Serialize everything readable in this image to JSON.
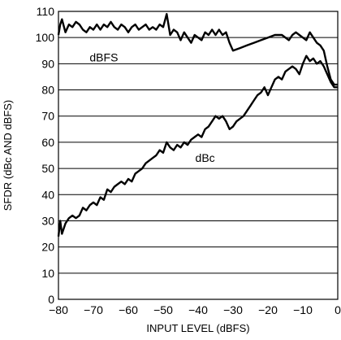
{
  "chart_data": {
    "type": "line",
    "xlabel": "INPUT LEVEL (dBFS)",
    "ylabel": "SFDR (dBc AND dBFS)",
    "xlim": [
      -80,
      0
    ],
    "ylim": [
      0,
      110
    ],
    "xticks": [
      -80,
      -70,
      -60,
      -50,
      -40,
      -30,
      -20,
      -10,
      0
    ],
    "xtick_labels": [
      "−80",
      "−70",
      "−60",
      "−50",
      "−40",
      "−30",
      "−20",
      "−10",
      "0"
    ],
    "yticks": [
      0,
      10,
      20,
      30,
      40,
      50,
      60,
      70,
      80,
      90,
      100,
      110
    ],
    "grid": "horizontal",
    "series": [
      {
        "name": "dBFS",
        "points": [
          [
            -80,
            101
          ],
          [
            -79.5,
            105
          ],
          [
            -79,
            107
          ],
          [
            -78,
            102
          ],
          [
            -77,
            105
          ],
          [
            -76,
            104
          ],
          [
            -75,
            106
          ],
          [
            -74,
            105
          ],
          [
            -73,
            103
          ],
          [
            -72,
            102
          ],
          [
            -71,
            104
          ],
          [
            -70,
            103
          ],
          [
            -69,
            105
          ],
          [
            -68,
            103
          ],
          [
            -67,
            105
          ],
          [
            -66,
            104
          ],
          [
            -65,
            106
          ],
          [
            -64,
            104
          ],
          [
            -63,
            103
          ],
          [
            -62,
            105
          ],
          [
            -61,
            104
          ],
          [
            -60,
            102
          ],
          [
            -59,
            104
          ],
          [
            -58,
            105
          ],
          [
            -57,
            103
          ],
          [
            -56,
            104
          ],
          [
            -55,
            105
          ],
          [
            -54,
            103
          ],
          [
            -53,
            104
          ],
          [
            -52,
            103
          ],
          [
            -51,
            105
          ],
          [
            -50,
            104
          ],
          [
            -49,
            109
          ],
          [
            -48,
            101
          ],
          [
            -47,
            103
          ],
          [
            -46,
            102
          ],
          [
            -45,
            99
          ],
          [
            -44,
            102
          ],
          [
            -43,
            100
          ],
          [
            -42,
            98
          ],
          [
            -41,
            101
          ],
          [
            -40,
            100
          ],
          [
            -39,
            99
          ],
          [
            -38,
            102
          ],
          [
            -37,
            101
          ],
          [
            -36,
            103
          ],
          [
            -35,
            101
          ],
          [
            -34,
            103
          ],
          [
            -33,
            101
          ],
          [
            -32,
            102
          ],
          [
            -31,
            98
          ],
          [
            -30,
            95
          ],
          [
            -28,
            96
          ],
          [
            -26,
            97
          ],
          [
            -24,
            98
          ],
          [
            -22,
            99
          ],
          [
            -20,
            100
          ],
          [
            -18,
            101
          ],
          [
            -16,
            101
          ],
          [
            -14,
            99
          ],
          [
            -13,
            101
          ],
          [
            -12,
            102
          ],
          [
            -11,
            101
          ],
          [
            -10,
            100
          ],
          [
            -9,
            99
          ],
          [
            -8,
            102
          ],
          [
            -7,
            100
          ],
          [
            -6,
            98
          ],
          [
            -5,
            97
          ],
          [
            -4,
            95
          ],
          [
            -3,
            89
          ],
          [
            -2,
            84
          ],
          [
            -1,
            82
          ],
          [
            0,
            82
          ]
        ]
      },
      {
        "name": "dBc",
        "points": [
          [
            -80,
            24
          ],
          [
            -79.5,
            30
          ],
          [
            -79,
            25
          ],
          [
            -78,
            29
          ],
          [
            -77,
            31
          ],
          [
            -76,
            32
          ],
          [
            -75,
            31
          ],
          [
            -74,
            32
          ],
          [
            -73,
            35
          ],
          [
            -72,
            34
          ],
          [
            -71,
            36
          ],
          [
            -70,
            37
          ],
          [
            -69,
            36
          ],
          [
            -68,
            39
          ],
          [
            -67,
            38
          ],
          [
            -66,
            42
          ],
          [
            -65,
            41
          ],
          [
            -64,
            43
          ],
          [
            -63,
            44
          ],
          [
            -62,
            45
          ],
          [
            -61,
            44
          ],
          [
            -60,
            46
          ],
          [
            -59,
            45
          ],
          [
            -58,
            48
          ],
          [
            -57,
            49
          ],
          [
            -56,
            50
          ],
          [
            -55,
            52
          ],
          [
            -54,
            53
          ],
          [
            -53,
            54
          ],
          [
            -52,
            55
          ],
          [
            -51,
            57
          ],
          [
            -50,
            56
          ],
          [
            -49,
            60
          ],
          [
            -48,
            58
          ],
          [
            -47,
            57
          ],
          [
            -46,
            59
          ],
          [
            -45,
            58
          ],
          [
            -44,
            60
          ],
          [
            -43,
            59
          ],
          [
            -42,
            61
          ],
          [
            -41,
            62
          ],
          [
            -40,
            63
          ],
          [
            -39,
            62
          ],
          [
            -38,
            65
          ],
          [
            -37,
            66
          ],
          [
            -36,
            68
          ],
          [
            -35,
            70
          ],
          [
            -34,
            69
          ],
          [
            -33,
            70
          ],
          [
            -32,
            68
          ],
          [
            -31,
            65
          ],
          [
            -30,
            66
          ],
          [
            -29,
            68
          ],
          [
            -28,
            69
          ],
          [
            -27,
            70
          ],
          [
            -26,
            72
          ],
          [
            -25,
            74
          ],
          [
            -24,
            76
          ],
          [
            -23,
            78
          ],
          [
            -22,
            79
          ],
          [
            -21,
            81
          ],
          [
            -20,
            78
          ],
          [
            -19,
            81
          ],
          [
            -18,
            84
          ],
          [
            -17,
            85
          ],
          [
            -16,
            84
          ],
          [
            -15,
            87
          ],
          [
            -14,
            88
          ],
          [
            -13,
            89
          ],
          [
            -12,
            88
          ],
          [
            -11,
            86
          ],
          [
            -10,
            90
          ],
          [
            -9,
            93
          ],
          [
            -8,
            91
          ],
          [
            -7,
            92
          ],
          [
            -6,
            90
          ],
          [
            -5,
            91
          ],
          [
            -4,
            89
          ],
          [
            -3,
            86
          ],
          [
            -2,
            83
          ],
          [
            -1,
            81
          ],
          [
            0,
            81
          ]
        ]
      }
    ]
  }
}
